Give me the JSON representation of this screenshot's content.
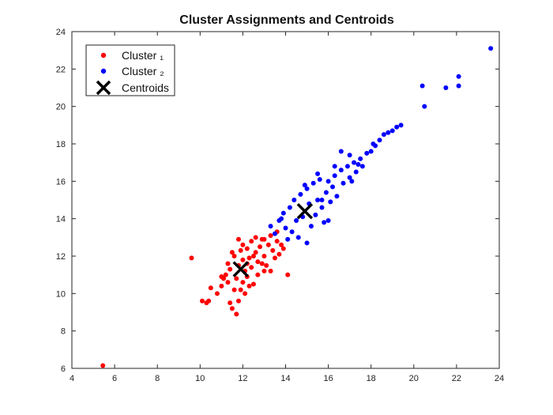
{
  "chart_data": {
    "type": "scatter",
    "title": "Cluster Assignments and Centroids",
    "xlabel": "",
    "ylabel": "",
    "xlim": [
      4,
      24
    ],
    "ylim": [
      6,
      24
    ],
    "xticks": [
      "4",
      "6",
      "8",
      "10",
      "12",
      "14",
      "16",
      "18",
      "20",
      "22",
      "24"
    ],
    "yticks": [
      "6",
      "8",
      "10",
      "12",
      "14",
      "16",
      "18",
      "20",
      "22",
      "24"
    ],
    "grid": false,
    "legend_position": "top-left",
    "colors": {
      "cluster1": "#ff0000",
      "cluster2": "#0000ff",
      "centroid": "#000000"
    },
    "series": [
      {
        "name": "Cluster ₁",
        "marker": "dot",
        "color": "#ff0000",
        "points": [
          [
            5.45,
            6.15
          ],
          [
            9.6,
            11.9
          ],
          [
            10.1,
            9.6
          ],
          [
            10.3,
            9.5
          ],
          [
            10.4,
            9.6
          ],
          [
            10.5,
            10.3
          ],
          [
            10.8,
            10.0
          ],
          [
            11.0,
            10.4
          ],
          [
            11.0,
            10.9
          ],
          [
            11.2,
            11.0
          ],
          [
            11.3,
            10.6
          ],
          [
            11.3,
            11.6
          ],
          [
            11.4,
            9.5
          ],
          [
            11.5,
            12.2
          ],
          [
            11.5,
            9.2
          ],
          [
            11.6,
            10.2
          ],
          [
            11.6,
            12.0
          ],
          [
            11.7,
            10.8
          ],
          [
            11.7,
            8.9
          ],
          [
            11.8,
            11.5
          ],
          [
            11.8,
            9.6
          ],
          [
            11.9,
            12.3
          ],
          [
            12.0,
            10.6
          ],
          [
            12.0,
            11.8
          ],
          [
            12.0,
            12.6
          ],
          [
            12.1,
            11.2
          ],
          [
            12.2,
            12.4
          ],
          [
            12.2,
            10.9
          ],
          [
            12.3,
            11.9
          ],
          [
            12.4,
            12.8
          ],
          [
            12.4,
            11.4
          ],
          [
            12.5,
            10.5
          ],
          [
            12.6,
            12.2
          ],
          [
            12.6,
            13.0
          ],
          [
            12.7,
            11.7
          ],
          [
            12.8,
            12.5
          ],
          [
            12.9,
            11.6
          ],
          [
            13.0,
            12.9
          ],
          [
            13.0,
            12.0
          ],
          [
            13.1,
            11.5
          ],
          [
            13.2,
            12.6
          ],
          [
            13.3,
            13.1
          ],
          [
            13.4,
            12.3
          ],
          [
            13.5,
            11.9
          ],
          [
            13.6,
            12.8
          ],
          [
            13.7,
            12.1
          ],
          [
            13.8,
            12.6
          ],
          [
            13.9,
            12.4
          ],
          [
            14.1,
            11.0
          ],
          [
            12.1,
            10.0
          ],
          [
            11.9,
            10.2
          ],
          [
            12.3,
            10.4
          ],
          [
            13.3,
            11.2
          ],
          [
            12.7,
            11.0
          ],
          [
            11.4,
            11.3
          ],
          [
            11.1,
            10.8
          ],
          [
            12.9,
            12.9
          ],
          [
            13.6,
            13.3
          ],
          [
            12.5,
            12.0
          ],
          [
            11.8,
            12.9
          ],
          [
            12.2,
            11.6
          ],
          [
            13.0,
            11.2
          ]
        ]
      },
      {
        "name": "Cluster ₂",
        "marker": "dot",
        "color": "#0000ff",
        "points": [
          [
            13.3,
            13.6
          ],
          [
            13.5,
            13.2
          ],
          [
            13.7,
            13.9
          ],
          [
            13.9,
            14.3
          ],
          [
            14.0,
            13.5
          ],
          [
            14.1,
            12.9
          ],
          [
            14.2,
            14.6
          ],
          [
            14.4,
            15.0
          ],
          [
            14.5,
            13.9
          ],
          [
            14.6,
            13.0
          ],
          [
            14.7,
            15.3
          ],
          [
            14.8,
            14.1
          ],
          [
            15.0,
            15.6
          ],
          [
            15.0,
            12.7
          ],
          [
            15.1,
            14.8
          ],
          [
            15.2,
            13.6
          ],
          [
            15.3,
            15.9
          ],
          [
            15.4,
            14.2
          ],
          [
            15.5,
            15.0
          ],
          [
            15.6,
            16.1
          ],
          [
            15.7,
            14.6
          ],
          [
            15.8,
            13.8
          ],
          [
            15.9,
            15.4
          ],
          [
            16.0,
            16.0
          ],
          [
            16.1,
            14.9
          ],
          [
            16.2,
            15.7
          ],
          [
            16.3,
            16.3
          ],
          [
            16.4,
            15.2
          ],
          [
            16.6,
            16.6
          ],
          [
            16.7,
            15.9
          ],
          [
            16.9,
            16.8
          ],
          [
            17.0,
            16.2
          ],
          [
            17.1,
            16.0
          ],
          [
            17.2,
            17.0
          ],
          [
            17.3,
            16.5
          ],
          [
            17.5,
            17.2
          ],
          [
            17.6,
            16.8
          ],
          [
            17.8,
            17.5
          ],
          [
            18.0,
            17.6
          ],
          [
            18.2,
            17.9
          ],
          [
            18.4,
            18.2
          ],
          [
            18.6,
            18.5
          ],
          [
            18.8,
            18.6
          ],
          [
            19.0,
            18.7
          ],
          [
            19.2,
            18.9
          ],
          [
            19.4,
            19.0
          ],
          [
            20.4,
            21.1
          ],
          [
            20.5,
            20.0
          ],
          [
            21.5,
            21.0
          ],
          [
            22.1,
            21.1
          ],
          [
            22.1,
            21.6
          ],
          [
            23.6,
            23.1
          ],
          [
            16.6,
            17.6
          ],
          [
            16.3,
            16.8
          ],
          [
            17.0,
            17.4
          ],
          [
            14.9,
            15.8
          ],
          [
            15.5,
            16.4
          ],
          [
            16.0,
            13.9
          ],
          [
            13.8,
            14.0
          ],
          [
            14.3,
            13.3
          ],
          [
            15.7,
            15.0
          ],
          [
            17.4,
            16.9
          ],
          [
            18.1,
            18.0
          ]
        ]
      },
      {
        "name": "Centroids",
        "marker": "x",
        "color": "#000000",
        "points": [
          [
            11.9,
            11.3
          ],
          [
            14.9,
            14.4
          ]
        ]
      }
    ]
  }
}
